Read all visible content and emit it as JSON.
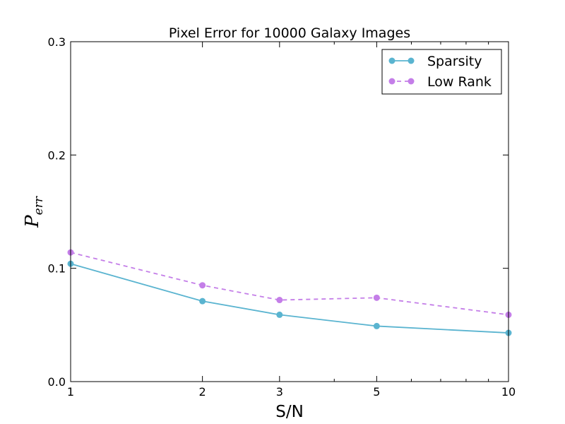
{
  "chart_data": {
    "type": "line",
    "title": "Pixel Error for 10000 Galaxy Images",
    "xlabel": "S/N",
    "ylabel": {
      "main": "P",
      "sub": "err"
    },
    "xscale": "log",
    "xlim": [
      1,
      10
    ],
    "ylim": [
      0.0,
      0.3
    ],
    "x": [
      1,
      2,
      3,
      5,
      10
    ],
    "xticks": [
      {
        "value": 1,
        "label": "1"
      },
      {
        "value": 2,
        "label": "2"
      },
      {
        "value": 3,
        "label": "3"
      },
      {
        "value": 5,
        "label": "5"
      },
      {
        "value": 10,
        "label": "10"
      }
    ],
    "minor_xticks": [
      4,
      6,
      7,
      8,
      9
    ],
    "yticks": [
      {
        "value": 0.0,
        "label": "0.0"
      },
      {
        "value": 0.1,
        "label": "0.1"
      },
      {
        "value": 0.2,
        "label": "0.2"
      },
      {
        "value": 0.3,
        "label": "0.3"
      }
    ],
    "grid": false,
    "legend_position": "top-right",
    "series": [
      {
        "name": "Sparsity",
        "values": [
          0.104,
          0.071,
          0.059,
          0.049,
          0.043
        ],
        "color": "#5ab4d0",
        "style": "solid"
      },
      {
        "name": "Low Rank",
        "values": [
          0.114,
          0.085,
          0.072,
          0.074,
          0.059
        ],
        "color": "#c47ee8",
        "style": "dashed"
      }
    ]
  }
}
